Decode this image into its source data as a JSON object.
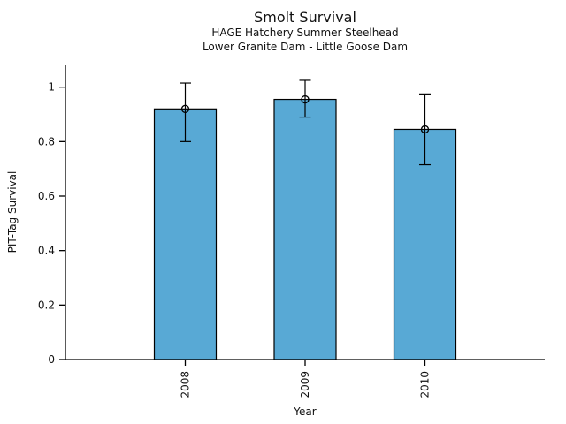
{
  "header": {
    "title": "Smolt Survival",
    "subtitle1": "HAGE Hatchery Summer Steelhead",
    "subtitle2": "Lower Granite Dam - Little Goose Dam"
  },
  "chart_data": {
    "type": "bar",
    "title": "Smolt Survival",
    "subtitle": [
      "HAGE Hatchery Summer Steelhead",
      "Lower Granite Dam - Little Goose Dam"
    ],
    "xlabel": "Year",
    "ylabel": "PIT-Tag Survival",
    "categories": [
      "2008",
      "2009",
      "2010"
    ],
    "values": [
      0.92,
      0.955,
      0.845
    ],
    "error_bars": [
      {
        "low": 0.8,
        "high": 1.015
      },
      {
        "low": 0.89,
        "high": 1.025
      },
      {
        "low": 0.715,
        "high": 0.975
      }
    ],
    "marker": "open-circle",
    "yticks": [
      0,
      0.2,
      0.4,
      0.6,
      0.8,
      1
    ],
    "ytick_labels": [
      "0",
      "0.2",
      "0.4",
      "0.6",
      "0.8",
      "1"
    ],
    "ylim": [
      0,
      1.08
    ],
    "grid": false,
    "legend": null,
    "bar_color": "#58A9D5",
    "bar_edge_color": "#000000",
    "axis_color": "#000000"
  }
}
